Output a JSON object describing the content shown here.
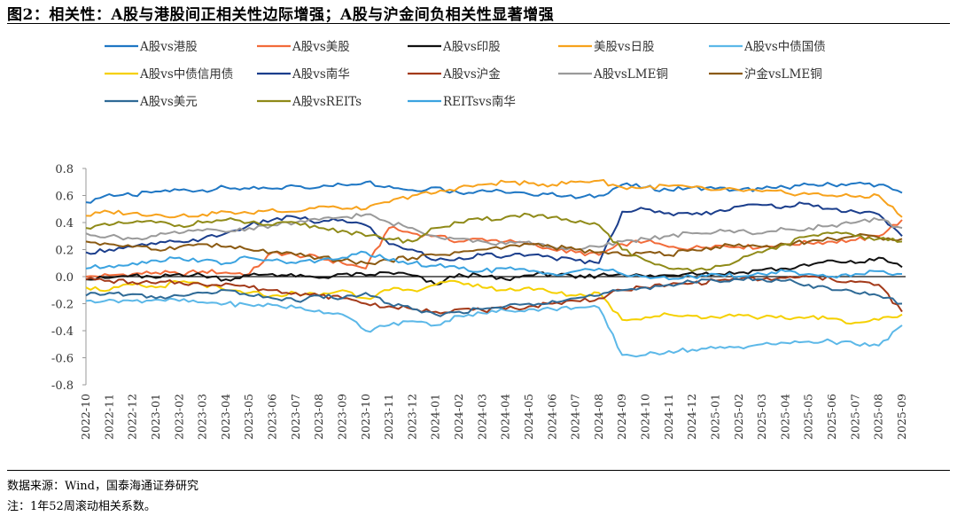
{
  "title": "图2：相关性：A股与港股间正相关性边际增强；A股与沪金间负相关性显著增强",
  "source": "数据来源：Wind，国泰海通证券研究",
  "footnote": "注：1年52周滚动相关系数。",
  "chart_data": {
    "type": "line",
    "ylim": [
      -0.8,
      0.8
    ],
    "yticks": [
      -0.8,
      -0.6,
      -0.4,
      -0.2,
      0.0,
      0.2,
      0.4,
      0.6,
      0.8
    ],
    "ytick_labels": [
      "-0.8",
      "-0.6",
      "-0.4",
      "-0.2",
      "0.0",
      "0.2",
      "0.4",
      "0.6",
      "0.8"
    ],
    "categories": [
      "2022-10",
      "2022-11",
      "2022-12",
      "2023-01",
      "2023-02",
      "2023-03",
      "2023-04",
      "2023-05",
      "2023-06",
      "2023-07",
      "2023-08",
      "2023-09",
      "2023-10",
      "2023-11",
      "2023-12",
      "2024-01",
      "2024-02",
      "2024-03",
      "2024-04",
      "2024-05",
      "2024-06",
      "2024-07",
      "2024-08",
      "2024-09",
      "2024-10",
      "2024-11",
      "2024-12",
      "2025-01",
      "2025-02",
      "2025-03",
      "2025-04",
      "2025-05",
      "2025-06",
      "2025-07",
      "2025-08",
      "2025-09"
    ],
    "legend_position": "top",
    "series": [
      {
        "name": "A股vs港股",
        "color": "#1F77C4",
        "values": [
          0.55,
          0.61,
          0.6,
          0.63,
          0.64,
          0.64,
          0.66,
          0.65,
          0.65,
          0.67,
          0.66,
          0.68,
          0.7,
          0.67,
          0.64,
          0.66,
          0.62,
          0.64,
          0.62,
          0.61,
          0.62,
          0.58,
          0.6,
          0.68,
          0.66,
          0.64,
          0.66,
          0.65,
          0.64,
          0.65,
          0.66,
          0.68,
          0.68,
          0.69,
          0.68,
          0.62
        ]
      },
      {
        "name": "A股vs美股",
        "color": "#F26B3A",
        "values": [
          0.0,
          0.01,
          0.02,
          0.03,
          0.02,
          0.04,
          0.03,
          0.02,
          0.18,
          0.16,
          0.14,
          0.1,
          0.06,
          0.36,
          0.32,
          0.3,
          0.26,
          0.28,
          0.26,
          0.24,
          0.2,
          0.18,
          0.16,
          0.24,
          0.26,
          0.22,
          0.21,
          0.23,
          0.22,
          0.22,
          0.24,
          0.25,
          0.26,
          0.27,
          0.3,
          0.42
        ]
      },
      {
        "name": "A股vs印股",
        "color": "#111111",
        "values": [
          -0.02,
          -0.01,
          0.01,
          -0.01,
          0.02,
          0.01,
          -0.02,
          0.01,
          0.02,
          0.0,
          -0.01,
          0.02,
          0.01,
          0.03,
          0.01,
          -0.06,
          0.02,
          0.0,
          -0.02,
          0.01,
          0.02,
          -0.01,
          0.01,
          0.02,
          0.0,
          0.01,
          0.03,
          0.02,
          0.03,
          0.05,
          0.06,
          0.08,
          0.12,
          0.1,
          0.14,
          0.07
        ]
      },
      {
        "name": "美股vs日股",
        "color": "#F7A21C",
        "values": [
          0.45,
          0.48,
          0.47,
          0.46,
          0.45,
          0.46,
          0.48,
          0.47,
          0.5,
          0.48,
          0.52,
          0.5,
          0.5,
          0.55,
          0.6,
          0.62,
          0.66,
          0.68,
          0.7,
          0.69,
          0.68,
          0.7,
          0.71,
          0.66,
          0.66,
          0.67,
          0.66,
          0.64,
          0.64,
          0.63,
          0.62,
          0.61,
          0.6,
          0.59,
          0.6,
          0.44
        ]
      },
      {
        "name": "A股vs中债国债",
        "color": "#5CB8E8",
        "values": [
          -0.18,
          -0.17,
          -0.18,
          -0.17,
          -0.18,
          -0.19,
          -0.2,
          -0.21,
          -0.21,
          -0.23,
          -0.25,
          -0.28,
          -0.4,
          -0.36,
          -0.33,
          -0.36,
          -0.29,
          -0.27,
          -0.25,
          -0.24,
          -0.24,
          -0.23,
          -0.23,
          -0.58,
          -0.58,
          -0.55,
          -0.54,
          -0.53,
          -0.52,
          -0.5,
          -0.49,
          -0.48,
          -0.48,
          -0.5,
          -0.51,
          -0.36
        ]
      },
      {
        "name": "A股vs中债信用债",
        "color": "#F5D000",
        "values": [
          -0.08,
          -0.1,
          -0.06,
          -0.08,
          -0.04,
          -0.06,
          -0.1,
          -0.12,
          -0.14,
          -0.12,
          -0.14,
          -0.1,
          -0.16,
          -0.1,
          -0.1,
          -0.06,
          -0.04,
          -0.08,
          -0.1,
          -0.08,
          -0.12,
          -0.14,
          -0.12,
          -0.32,
          -0.3,
          -0.28,
          -0.29,
          -0.3,
          -0.28,
          -0.3,
          -0.31,
          -0.3,
          -0.31,
          -0.34,
          -0.32,
          -0.28
        ]
      },
      {
        "name": "A股vs南华",
        "color": "#1B3E8C",
        "values": [
          0.18,
          0.2,
          0.22,
          0.24,
          0.26,
          0.28,
          0.32,
          0.38,
          0.42,
          0.44,
          0.4,
          0.42,
          0.38,
          0.24,
          0.2,
          0.12,
          0.14,
          0.16,
          0.15,
          0.16,
          0.14,
          0.12,
          0.1,
          0.48,
          0.5,
          0.47,
          0.46,
          0.48,
          0.52,
          0.53,
          0.52,
          0.54,
          0.5,
          0.48,
          0.46,
          0.3
        ]
      },
      {
        "name": "A股vs沪金",
        "color": "#A33A1A",
        "values": [
          -0.02,
          -0.03,
          -0.04,
          -0.05,
          -0.04,
          -0.06,
          -0.05,
          -0.08,
          -0.1,
          -0.12,
          -0.14,
          -0.16,
          -0.2,
          -0.22,
          -0.24,
          -0.26,
          -0.24,
          -0.25,
          -0.24,
          -0.22,
          -0.2,
          -0.18,
          -0.16,
          -0.1,
          -0.08,
          -0.06,
          -0.05,
          -0.03,
          -0.02,
          -0.02,
          -0.01,
          0.0,
          -0.02,
          -0.04,
          -0.06,
          -0.26
        ]
      },
      {
        "name": "A股vsLME铜",
        "color": "#9A9A9A",
        "values": [
          0.32,
          0.3,
          0.28,
          0.3,
          0.32,
          0.34,
          0.33,
          0.36,
          0.38,
          0.4,
          0.42,
          0.44,
          0.46,
          0.4,
          0.36,
          0.3,
          0.28,
          0.26,
          0.24,
          0.26,
          0.22,
          0.2,
          0.22,
          0.26,
          0.28,
          0.3,
          0.32,
          0.33,
          0.34,
          0.32,
          0.35,
          0.36,
          0.38,
          0.4,
          0.42,
          0.36
        ]
      },
      {
        "name": "沪金vsLME铜",
        "color": "#8B5A12",
        "values": [
          0.26,
          0.24,
          0.22,
          0.2,
          0.22,
          0.24,
          0.22,
          0.2,
          0.18,
          0.16,
          0.14,
          0.12,
          0.1,
          0.12,
          0.14,
          0.16,
          0.18,
          0.2,
          0.22,
          0.24,
          0.22,
          0.2,
          0.18,
          0.16,
          0.18,
          0.16,
          0.2,
          0.22,
          0.24,
          0.22,
          0.24,
          0.26,
          0.28,
          0.3,
          0.29,
          0.28
        ]
      },
      {
        "name": "A股vs美元",
        "color": "#2F6A96",
        "values": [
          -0.14,
          -0.12,
          -0.13,
          -0.16,
          -0.14,
          -0.12,
          -0.1,
          -0.14,
          -0.16,
          -0.18,
          -0.14,
          -0.16,
          -0.12,
          -0.2,
          -0.24,
          -0.28,
          -0.26,
          -0.24,
          -0.22,
          -0.2,
          -0.18,
          -0.16,
          -0.14,
          -0.1,
          -0.08,
          -0.06,
          -0.04,
          -0.03,
          -0.02,
          -0.02,
          -0.03,
          -0.06,
          -0.1,
          -0.12,
          -0.14,
          -0.2
        ]
      },
      {
        "name": "A股vsREITs",
        "color": "#8F8A18",
        "values": [
          0.36,
          0.38,
          0.4,
          0.4,
          0.38,
          0.4,
          0.42,
          0.4,
          0.38,
          0.4,
          0.36,
          0.34,
          0.3,
          0.28,
          0.26,
          0.36,
          0.4,
          0.42,
          0.44,
          0.46,
          0.44,
          0.4,
          0.38,
          0.2,
          0.12,
          0.06,
          0.04,
          0.08,
          0.12,
          0.18,
          0.24,
          0.3,
          0.32,
          0.3,
          0.28,
          0.26
        ]
      },
      {
        "name": "REITsvs南华",
        "color": "#3BA3E0",
        "values": [
          0.06,
          0.08,
          0.1,
          0.12,
          0.14,
          0.12,
          0.1,
          0.14,
          0.12,
          0.1,
          0.12,
          0.14,
          0.18,
          0.12,
          0.1,
          0.08,
          0.06,
          0.04,
          0.06,
          0.04,
          0.02,
          0.04,
          0.06,
          0.02,
          0.0,
          -0.02,
          0.0,
          0.02,
          0.0,
          0.02,
          0.04,
          0.02,
          0.0,
          0.02,
          0.04,
          0.02
        ]
      }
    ]
  }
}
